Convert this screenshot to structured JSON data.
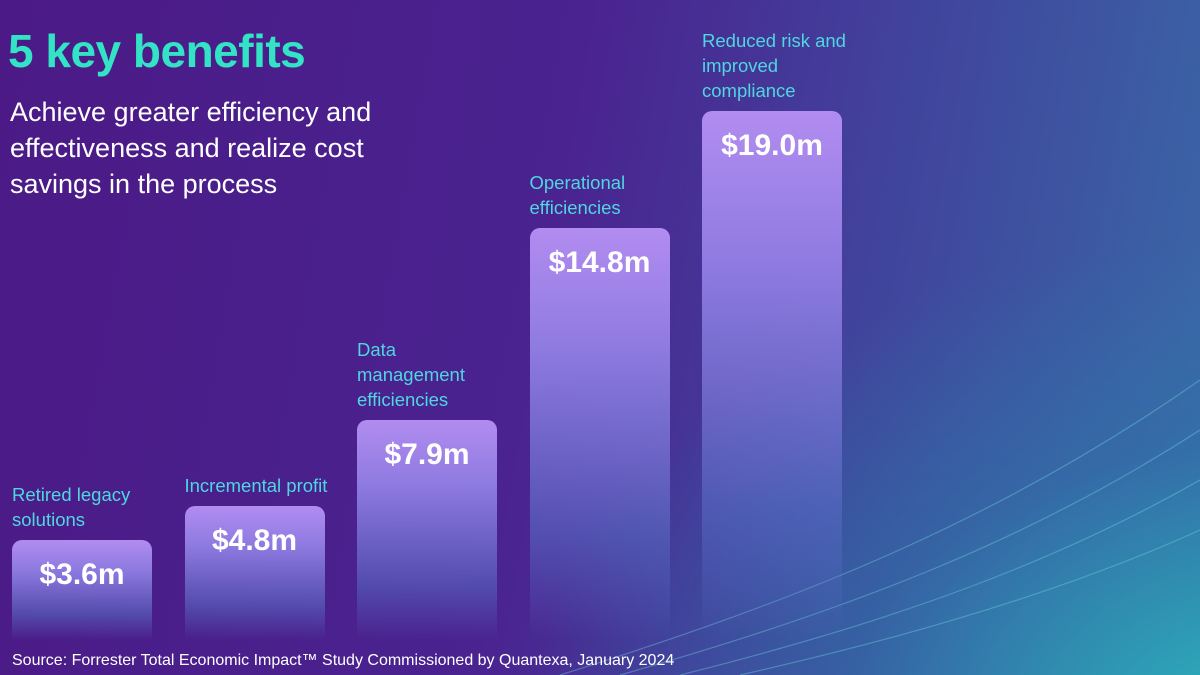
{
  "chart_data": {
    "type": "bar",
    "title": "5 key benefits",
    "subtitle": "Achieve greater efficiency and effectiveness and realize cost savings in the process",
    "categories": [
      "Retired legacy solutions",
      "Incremental profit",
      "Data management efficiencies",
      "Operational efficiencies",
      "Reduced risk and improved compliance"
    ],
    "values": [
      3.6,
      4.8,
      7.9,
      14.8,
      19.0
    ],
    "value_labels": [
      "$3.6m",
      "$4.8m",
      "$7.9m",
      "$14.8m",
      "$19.0m"
    ],
    "source": "Source: Forrester Total Economic Impact™ Study Commissioned by Quantexa, January 2024"
  }
}
